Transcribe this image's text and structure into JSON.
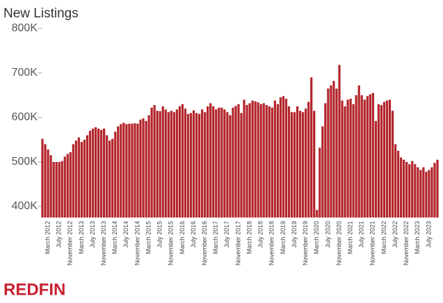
{
  "chart_data": {
    "type": "bar",
    "title": "New Listings",
    "brand": "REDFIN",
    "color": "#b3242b",
    "categories": [
      null,
      null,
      "March 2012",
      null,
      null,
      null,
      "July 2012",
      null,
      null,
      null,
      "November 2012",
      null,
      null,
      null,
      "March 2013",
      null,
      null,
      null,
      "July 2013",
      null,
      null,
      null,
      "November 2013",
      null,
      null,
      null,
      "March 2014",
      null,
      null,
      null,
      "July 2014",
      null,
      null,
      null,
      "November 2014",
      null,
      null,
      null,
      "March 2015",
      null,
      null,
      null,
      "July 2015",
      null,
      null,
      null,
      "November 2015",
      null,
      null,
      null,
      "March 2016",
      null,
      null,
      null,
      "July 2016",
      null,
      null,
      null,
      "November 2016",
      null,
      null,
      null,
      "March 2017",
      null,
      null,
      null,
      "July 2017",
      null,
      null,
      null,
      "November 2017",
      null,
      null,
      null,
      "March 2018",
      null,
      null,
      null,
      "July 2018",
      null,
      null,
      null,
      "November 2018",
      null,
      null,
      null,
      "March 2019",
      null,
      null,
      null,
      "July 2019",
      null,
      null,
      null,
      "November 2019",
      null,
      null,
      null,
      "March 2020",
      null,
      null,
      null,
      "July 2020",
      null,
      null,
      null,
      "November 2020",
      null,
      null,
      null,
      "March 2021",
      null,
      null,
      null,
      "July 2021",
      null,
      null,
      null,
      "November 2021",
      null,
      null,
      null,
      "March 2022",
      null,
      null,
      null,
      "July 2022",
      null,
      null,
      null,
      "November 2022",
      null,
      null,
      null,
      "March 2023",
      null,
      null,
      null,
      "July 2023",
      null,
      null,
      null
    ],
    "values": [
      552000,
      540000,
      528000,
      515000,
      500000,
      500000,
      500000,
      502000,
      512000,
      518000,
      522000,
      540000,
      548000,
      555000,
      545000,
      550000,
      560000,
      570000,
      575000,
      578000,
      575000,
      572000,
      575000,
      560000,
      548000,
      552000,
      568000,
      580000,
      585000,
      588000,
      585000,
      586000,
      586000,
      587000,
      586000,
      595000,
      598000,
      592000,
      605000,
      622000,
      628000,
      615000,
      614000,
      625000,
      618000,
      612000,
      615000,
      612000,
      618000,
      625000,
      630000,
      620000,
      608000,
      610000,
      616000,
      610000,
      608000,
      618000,
      612000,
      625000,
      632000,
      625000,
      618000,
      622000,
      622000,
      618000,
      612000,
      605000,
      622000,
      626000,
      630000,
      610000,
      640000,
      628000,
      632000,
      638000,
      636000,
      634000,
      630000,
      632000,
      628000,
      625000,
      622000,
      638000,
      630000,
      645000,
      648000,
      642000,
      625000,
      612000,
      612000,
      625000,
      615000,
      612000,
      620000,
      635000,
      690000,
      615000,
      392000,
      532000,
      580000,
      632000,
      665000,
      672000,
      682000,
      665000,
      718000,
      638000,
      625000,
      640000,
      642000,
      630000,
      650000,
      672000,
      650000,
      640000,
      648000,
      652000,
      655000,
      592000,
      630000,
      628000,
      635000,
      638000,
      640000,
      615000,
      540000,
      525000,
      510000,
      505000,
      500000,
      495000,
      502000,
      495000,
      488000,
      482000,
      488000,
      478000,
      482000,
      488000,
      498000,
      505000
    ],
    "ylim": [
      375000,
      800000
    ],
    "yticks": [
      {
        "value": 400000,
        "label": "400K"
      },
      {
        "value": 500000,
        "label": "500K"
      },
      {
        "value": 600000,
        "label": "600K"
      },
      {
        "value": 700000,
        "label": "700K"
      },
      {
        "value": 800000,
        "label": "800K"
      }
    ]
  }
}
